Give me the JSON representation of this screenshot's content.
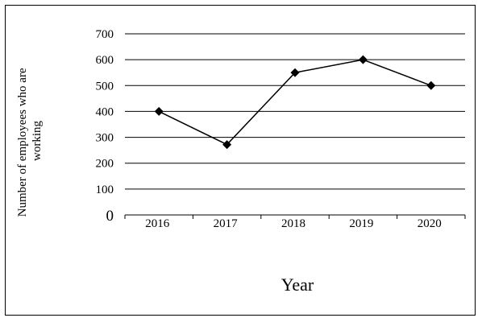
{
  "chart_data": {
    "type": "line",
    "categories": [
      "2016",
      "2017",
      "2018",
      "2019",
      "2020"
    ],
    "values": [
      400,
      272,
      550,
      600,
      500
    ],
    "title": "",
    "xlabel": "Year",
    "ylabel": [
      "Number of employees who are",
      "working"
    ],
    "ylim": [
      0,
      700
    ],
    "yticks": [
      0,
      100,
      200,
      300,
      400,
      500,
      600,
      700
    ],
    "grid": "horizontal",
    "marker": "diamond",
    "line_color": "#000000"
  }
}
